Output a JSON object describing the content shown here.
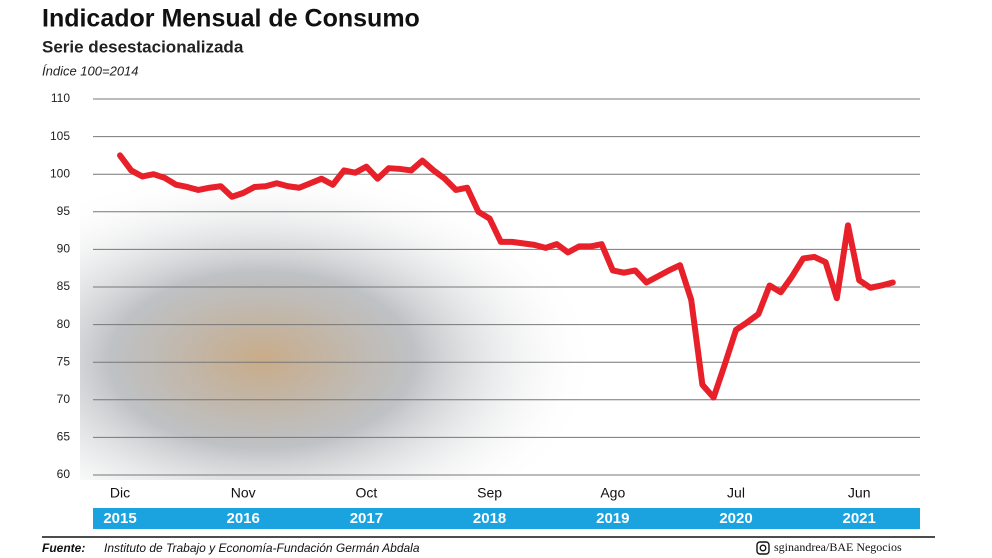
{
  "chart_data": {
    "type": "line",
    "title": "Indicador Mensual de Consumo",
    "subtitle": "Serie desestacionalizada",
    "unit_note": "Índice 100=2014",
    "source_label": "Fuente:",
    "source": "Instituto de Trabajo y Economía-Fundación Germán Abdala",
    "credit": "sginandrea/BAE Negocios",
    "categories": [
      "Dic",
      null,
      null,
      null,
      null,
      null,
      null,
      null,
      null,
      null,
      null,
      "Nov",
      null,
      null,
      null,
      null,
      null,
      null,
      null,
      null,
      null,
      null,
      "Oct",
      null,
      null,
      null,
      null,
      null,
      null,
      null,
      null,
      null,
      null,
      "Sep",
      null,
      null,
      null,
      null,
      null,
      null,
      null,
      null,
      null,
      null,
      "Ago",
      null,
      null,
      null,
      null,
      null,
      null,
      null,
      null,
      null,
      null,
      "Jul",
      null,
      null,
      null,
      null,
      null,
      null,
      null,
      null,
      null,
      null,
      "Jun",
      null,
      null,
      null
    ],
    "years": [
      "2015",
      null,
      null,
      null,
      null,
      null,
      null,
      null,
      null,
      null,
      null,
      "2016",
      null,
      null,
      null,
      null,
      null,
      null,
      null,
      null,
      null,
      null,
      "2017",
      null,
      null,
      null,
      null,
      null,
      null,
      null,
      null,
      null,
      null,
      "2018",
      null,
      null,
      null,
      null,
      null,
      null,
      null,
      null,
      null,
      null,
      "2019",
      null,
      null,
      null,
      null,
      null,
      null,
      null,
      null,
      null,
      null,
      "2020",
      null,
      null,
      null,
      null,
      null,
      null,
      null,
      null,
      null,
      null,
      "2021",
      null,
      null,
      null
    ],
    "series": [
      {
        "name": "Indicador Mensual de Consumo",
        "color": "#e8202a",
        "values": [
          102.5,
          100.5,
          99.7,
          100,
          99.5,
          98.6,
          98.3,
          97.9,
          98.2,
          98.4,
          97,
          97.5,
          98.3,
          98.4,
          98.8,
          98.4,
          98.2,
          98.8,
          99.4,
          98.6,
          100.5,
          100.2,
          101,
          99.4,
          100.8,
          100.7,
          100.5,
          101.8,
          100.5,
          99.4,
          97.9,
          98.2,
          95,
          94.1,
          91,
          91,
          90.8,
          90.6,
          90.2,
          90.7,
          89.6,
          90.4,
          90.4,
          90.7,
          87.2,
          86.9,
          87.2,
          85.6,
          86.4,
          87.2,
          87.9,
          83.3,
          72,
          70.3,
          74.7,
          79.3,
          80.3,
          81.4,
          85.2,
          84.3,
          86.4,
          88.8,
          89,
          88.3,
          83.5,
          93.2,
          85.9,
          84.9,
          85.2,
          85.6
        ]
      }
    ],
    "year_band_color": "#1ba3e0",
    "ylim": [
      60,
      110
    ],
    "yticks": [
      60,
      65,
      70,
      75,
      80,
      85,
      90,
      95,
      100,
      105,
      110
    ],
    "grid": true
  }
}
